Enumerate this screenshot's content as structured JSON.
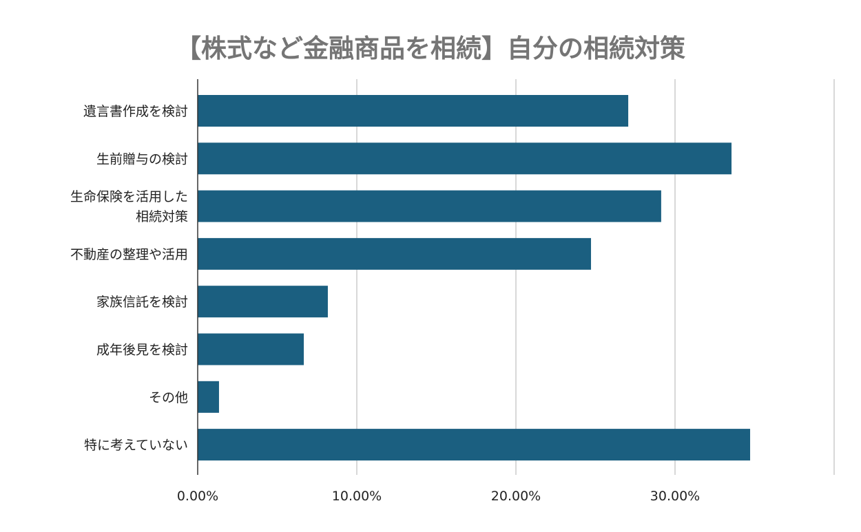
{
  "chart_data": {
    "type": "bar",
    "orientation": "horizontal",
    "title": "【株式など金融商品を相続】自分の相続対策",
    "categories": [
      "遺言書作成を検討",
      "生前贈与の検討",
      "生命保険を活用した\n相続対策",
      "不動産の整理や活用",
      "家族信託を検討",
      "成年後見を検討",
      "その他",
      "特に考えていない"
    ],
    "values": [
      27.06,
      33.55,
      29.13,
      24.72,
      8.18,
      6.67,
      1.34,
      34.72
    ],
    "xlim": [
      0,
      40
    ],
    "xticks": [
      0,
      10,
      20,
      30,
      40
    ],
    "xtick_labels": [
      "0.00%",
      "10.00%",
      "20.00%",
      "30.00%",
      ""
    ],
    "xlabel": "",
    "ylabel": "",
    "grid": true,
    "bar_color": "#1b5f80",
    "legend": "none"
  }
}
